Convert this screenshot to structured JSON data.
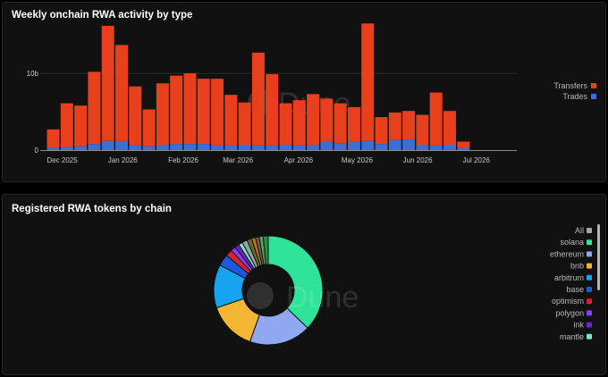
{
  "panels": {
    "top_title": "Weekly onchain RWA activity by type",
    "bottom_title": "Registered RWA tokens by chain"
  },
  "watermark": "Dune",
  "colors": {
    "transfers": "#e8401c",
    "trades": "#3b6fd6",
    "background": "#111111",
    "panel_border": "#262626"
  },
  "chart_data": [
    {
      "type": "bar",
      "stacked": true,
      "title": "Weekly onchain RWA activity by type",
      "categories": [
        "2025-12-01",
        "2025-12-08",
        "2025-12-15",
        "2025-12-22",
        "2025-12-29",
        "2026-01-05",
        "2026-01-12",
        "2026-01-19",
        "2026-01-26",
        "2026-02-02",
        "2026-02-09",
        "2026-02-16",
        "2026-02-23",
        "2026-03-02",
        "2026-03-09",
        "2026-03-16",
        "2026-03-23",
        "2026-03-30",
        "2026-04-06",
        "2026-04-13",
        "2026-04-20",
        "2026-04-27",
        "2026-05-04",
        "2026-05-11",
        "2026-05-18",
        "2026-05-25",
        "2026-06-01",
        "2026-06-08",
        "2026-06-15",
        "2026-06-22",
        "2026-06-29",
        "2026-07-06",
        "2026-07-13",
        "2026-07-20"
      ],
      "x_tick_labels": [
        "Dec 2025",
        "Jan 2026",
        "Feb 2026",
        "Mar 2026",
        "Apr 2026",
        "May 2026",
        "Jun 2026",
        "Jul 2026"
      ],
      "y_tick_labels": [
        "0",
        "10b"
      ],
      "ylim": [
        0,
        17
      ],
      "grid": true,
      "legend": {
        "position": "right",
        "entries": [
          "Transfers",
          "Trades"
        ]
      },
      "series": [
        {
          "name": "Transfers",
          "color": "#e8401c",
          "values": [
            2.4,
            5.7,
            5.3,
            9.4,
            15.0,
            12.5,
            7.7,
            4.8,
            8.0,
            8.9,
            9.2,
            8.5,
            8.7,
            6.6,
            5.5,
            12.1,
            9.3,
            5.4,
            5.9,
            6.6,
            5.6,
            5.2,
            4.5,
            15.3,
            3.5,
            3.6,
            3.7,
            3.9,
            6.9,
            4.4,
            0.8,
            0,
            0,
            0
          ]
        },
        {
          "name": "Trades",
          "color": "#3b6fd6",
          "values": [
            0.3,
            0.4,
            0.5,
            0.8,
            1.2,
            1.2,
            0.6,
            0.5,
            0.7,
            0.8,
            0.8,
            0.8,
            0.6,
            0.6,
            0.7,
            0.6,
            0.6,
            0.7,
            0.6,
            0.7,
            1.1,
            0.9,
            1.1,
            1.2,
            0.8,
            1.3,
            1.4,
            0.7,
            0.6,
            0.7,
            0.3,
            0,
            0,
            0
          ]
        }
      ]
    },
    {
      "type": "pie",
      "donut": true,
      "title": "Registered RWA tokens by chain",
      "legend": {
        "position": "right",
        "entries": [
          {
            "name": "All",
            "color": "#a7a7a7"
          },
          {
            "name": "solana",
            "color": "#2fe39a"
          },
          {
            "name": "ethereum",
            "color": "#8fa8f0"
          },
          {
            "name": "bnb",
            "color": "#f3b632"
          },
          {
            "name": "arbitrum",
            "color": "#15a4f0"
          },
          {
            "name": "base",
            "color": "#1f58e0"
          },
          {
            "name": "optimism",
            "color": "#e11d32"
          },
          {
            "name": "polygon",
            "color": "#8a3df0"
          },
          {
            "name": "ink",
            "color": "#6b22d0"
          },
          {
            "name": "mantle",
            "color": "#79e4c0"
          }
        ]
      },
      "slices": [
        {
          "label": "solana",
          "value": 37.5,
          "color": "#2fe39a"
        },
        {
          "label": "ethereum",
          "value": 18.5,
          "color": "#8fa8f0"
        },
        {
          "label": "bnb",
          "value": 14.5,
          "color": "#f3b632"
        },
        {
          "label": "arbitrum",
          "value": 13.0,
          "color": "#15a4f0"
        },
        {
          "label": "base",
          "value": 3.5,
          "color": "#1f58e0"
        },
        {
          "label": "optimism",
          "value": 2.0,
          "color": "#e11d32"
        },
        {
          "label": "polygon",
          "value": 1.5,
          "color": "#8a3df0"
        },
        {
          "label": "ink",
          "value": 1.3,
          "color": "#6b22d0"
        },
        {
          "label": "mantle",
          "value": 1.2,
          "color": "#79e4c0"
        },
        {
          "label": "",
          "value": 1.6,
          "color": "#9aa0a8"
        },
        {
          "label": "",
          "value": 1.4,
          "color": "#5c6f2a"
        },
        {
          "label": "",
          "value": 1.2,
          "color": "#c06a2a"
        },
        {
          "label": "",
          "value": 1.1,
          "color": "#7a5a3a"
        },
        {
          "label": "",
          "value": 1.2,
          "color": "#3fae5a"
        },
        {
          "label": "",
          "value": 1.5,
          "color": "#2f8a4a"
        }
      ]
    }
  ]
}
